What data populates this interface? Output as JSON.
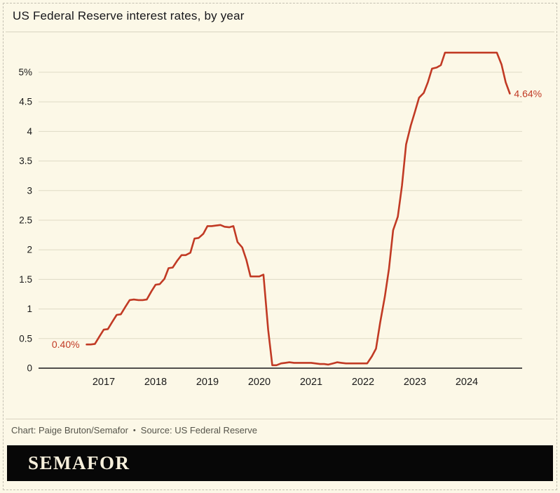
{
  "header": {
    "title": "US Federal Reserve interest rates, by year"
  },
  "footer": {
    "credit": "Chart: Paige Bruton/Semafor",
    "separator": "•",
    "source": "Source: US Federal Reserve"
  },
  "brand": {
    "wordmark": "SEMAFOR"
  },
  "colors": {
    "background": "#FCF8E7",
    "line": "#C13A24",
    "annotation": "#C13A24",
    "grid": "#DFDAC6",
    "axis": "#16161A",
    "tick_text": "#1A1A1A",
    "footer_text": "#55544A",
    "brand_bar": "#070707",
    "brand_text": "#F7F0DC",
    "border": "#C4C0B2"
  },
  "chart_data": {
    "type": "line",
    "title": "US Federal Reserve interest rates, by year",
    "xlabel": "",
    "ylabel": "",
    "unit": "%",
    "xlim": [
      2016.67,
      2024.83
    ],
    "ylim": [
      0,
      5.5
    ],
    "grid": "horizontal",
    "legend": "none",
    "x_ticks": [
      {
        "value": 2017,
        "label": "2017"
      },
      {
        "value": 2018,
        "label": "2018"
      },
      {
        "value": 2019,
        "label": "2019"
      },
      {
        "value": 2020,
        "label": "2020"
      },
      {
        "value": 2021,
        "label": "2021"
      },
      {
        "value": 2022,
        "label": "2022"
      },
      {
        "value": 2023,
        "label": "2023"
      },
      {
        "value": 2024,
        "label": "2024"
      }
    ],
    "y_ticks": [
      {
        "value": 0,
        "label": "0"
      },
      {
        "value": 0.5,
        "label": "0.5"
      },
      {
        "value": 1,
        "label": "1"
      },
      {
        "value": 1.5,
        "label": "1.5"
      },
      {
        "value": 2,
        "label": "2"
      },
      {
        "value": 2.5,
        "label": "2.5"
      },
      {
        "value": 3,
        "label": "3"
      },
      {
        "value": 3.5,
        "label": "3.5"
      },
      {
        "value": 4,
        "label": "4"
      },
      {
        "value": 4.5,
        "label": "4.5"
      },
      {
        "value": 5,
        "label": "5%"
      }
    ],
    "series": [
      {
        "name": "US Federal Reserve interest rate (%)",
        "color": "#C13A24",
        "points": [
          [
            2016.67,
            0.4
          ],
          [
            2016.75,
            0.4
          ],
          [
            2016.83,
            0.41
          ],
          [
            2016.92,
            0.54
          ],
          [
            2017.0,
            0.65
          ],
          [
            2017.08,
            0.66
          ],
          [
            2017.17,
            0.79
          ],
          [
            2017.25,
            0.9
          ],
          [
            2017.33,
            0.91
          ],
          [
            2017.42,
            1.04
          ],
          [
            2017.5,
            1.15
          ],
          [
            2017.58,
            1.16
          ],
          [
            2017.67,
            1.15
          ],
          [
            2017.75,
            1.15
          ],
          [
            2017.83,
            1.16
          ],
          [
            2017.92,
            1.3
          ],
          [
            2018.0,
            1.41
          ],
          [
            2018.08,
            1.42
          ],
          [
            2018.17,
            1.51
          ],
          [
            2018.25,
            1.69
          ],
          [
            2018.33,
            1.7
          ],
          [
            2018.42,
            1.82
          ],
          [
            2018.5,
            1.91
          ],
          [
            2018.58,
            1.91
          ],
          [
            2018.67,
            1.95
          ],
          [
            2018.75,
            2.19
          ],
          [
            2018.83,
            2.2
          ],
          [
            2018.92,
            2.27
          ],
          [
            2019.0,
            2.4
          ],
          [
            2019.08,
            2.4
          ],
          [
            2019.17,
            2.41
          ],
          [
            2019.25,
            2.42
          ],
          [
            2019.33,
            2.39
          ],
          [
            2019.42,
            2.38
          ],
          [
            2019.5,
            2.4
          ],
          [
            2019.58,
            2.13
          ],
          [
            2019.67,
            2.04
          ],
          [
            2019.75,
            1.83
          ],
          [
            2019.83,
            1.55
          ],
          [
            2019.92,
            1.55
          ],
          [
            2020.0,
            1.55
          ],
          [
            2020.08,
            1.58
          ],
          [
            2020.17,
            0.65
          ],
          [
            2020.25,
            0.05
          ],
          [
            2020.33,
            0.05
          ],
          [
            2020.42,
            0.08
          ],
          [
            2020.5,
            0.09
          ],
          [
            2020.58,
            0.1
          ],
          [
            2020.67,
            0.09
          ],
          [
            2020.75,
            0.09
          ],
          [
            2020.83,
            0.09
          ],
          [
            2020.92,
            0.09
          ],
          [
            2021.0,
            0.09
          ],
          [
            2021.08,
            0.08
          ],
          [
            2021.17,
            0.07
          ],
          [
            2021.25,
            0.07
          ],
          [
            2021.33,
            0.06
          ],
          [
            2021.42,
            0.08
          ],
          [
            2021.5,
            0.1
          ],
          [
            2021.58,
            0.09
          ],
          [
            2021.67,
            0.08
          ],
          [
            2021.75,
            0.08
          ],
          [
            2021.83,
            0.08
          ],
          [
            2021.92,
            0.08
          ],
          [
            2022.0,
            0.08
          ],
          [
            2022.08,
            0.08
          ],
          [
            2022.17,
            0.2
          ],
          [
            2022.25,
            0.33
          ],
          [
            2022.33,
            0.77
          ],
          [
            2022.42,
            1.21
          ],
          [
            2022.5,
            1.68
          ],
          [
            2022.58,
            2.33
          ],
          [
            2022.67,
            2.56
          ],
          [
            2022.75,
            3.08
          ],
          [
            2022.83,
            3.78
          ],
          [
            2022.92,
            4.1
          ],
          [
            2023.0,
            4.33
          ],
          [
            2023.08,
            4.57
          ],
          [
            2023.17,
            4.65
          ],
          [
            2023.25,
            4.83
          ],
          [
            2023.33,
            5.06
          ],
          [
            2023.42,
            5.08
          ],
          [
            2023.5,
            5.12
          ],
          [
            2023.58,
            5.33
          ],
          [
            2023.67,
            5.33
          ],
          [
            2023.75,
            5.33
          ],
          [
            2023.83,
            5.33
          ],
          [
            2023.92,
            5.33
          ],
          [
            2024.0,
            5.33
          ],
          [
            2024.08,
            5.33
          ],
          [
            2024.17,
            5.33
          ],
          [
            2024.25,
            5.33
          ],
          [
            2024.33,
            5.33
          ],
          [
            2024.42,
            5.33
          ],
          [
            2024.5,
            5.33
          ],
          [
            2024.58,
            5.33
          ],
          [
            2024.67,
            5.13
          ],
          [
            2024.75,
            4.83
          ],
          [
            2024.83,
            4.64
          ]
        ]
      }
    ],
    "annotations": [
      {
        "text": "0.40%",
        "x": 2016.67,
        "y": 0.4,
        "position": "left"
      },
      {
        "text": "4.64%",
        "x": 2024.83,
        "y": 4.64,
        "position": "right"
      }
    ]
  }
}
